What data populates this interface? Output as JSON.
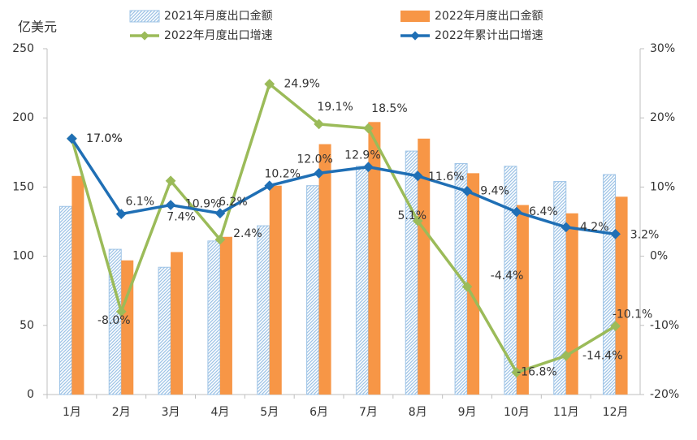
{
  "chart_data": {
    "type": "bar-line",
    "y_label": "亿美元",
    "categories": [
      "1月",
      "2月",
      "3月",
      "4月",
      "5月",
      "6月",
      "7月",
      "8月",
      "9月",
      "10月",
      "11月",
      "12月"
    ],
    "ylim": [
      0,
      250
    ],
    "yticks": [
      0,
      50,
      100,
      150,
      200,
      250
    ],
    "y2lim": [
      -20,
      30
    ],
    "y2ticks": [
      {
        "value": -20,
        "label": "-20%"
      },
      {
        "value": -10,
        "label": "-10%"
      },
      {
        "value": 0,
        "label": "0%"
      },
      {
        "value": 10,
        "label": "10%"
      },
      {
        "value": 20,
        "label": "20%"
      },
      {
        "value": 30,
        "label": "30%"
      }
    ],
    "series": [
      {
        "name": "2021年月度出口金额",
        "type": "bar",
        "color": "#9dc3e6",
        "values": [
          136,
          105,
          92,
          111,
          122,
          151,
          165,
          176,
          167,
          165,
          154,
          159
        ]
      },
      {
        "name": "2022年月度出口金额",
        "type": "bar",
        "color": "#f79646",
        "values": [
          158,
          97,
          103,
          114,
          151,
          181,
          197,
          185,
          160,
          137,
          131,
          143
        ]
      },
      {
        "name": "2022年月度出口增速",
        "type": "line",
        "axis": "y2",
        "color": "#9bbb59",
        "values": [
          17.0,
          -8.0,
          10.9,
          2.4,
          24.9,
          19.1,
          18.5,
          5.1,
          -4.4,
          -16.8,
          -14.4,
          -10.1
        ],
        "value_labels": [
          "17.0%",
          "-8.0%",
          "10.9%",
          "2.4%",
          "24.9%",
          "19.1%",
          "18.5%",
          "5.1%",
          "-4.4%",
          "-16.8%",
          "-14.4%",
          "-10.1%"
        ]
      },
      {
        "name": "2022年累计出口增速",
        "type": "line",
        "axis": "y2",
        "color": "#1f6fb5",
        "values": [
          17.0,
          6.1,
          7.4,
          6.2,
          10.2,
          12.0,
          12.9,
          11.6,
          9.4,
          6.4,
          4.2,
          3.2
        ],
        "value_labels": [
          "17.0%",
          "6.1%",
          "7.4%",
          "6.2%",
          "10.2%",
          "12.0%",
          "12.9%",
          "11.6%",
          "9.4%",
          "6.4%",
          "4.2%",
          "3.2%"
        ]
      }
    ]
  }
}
